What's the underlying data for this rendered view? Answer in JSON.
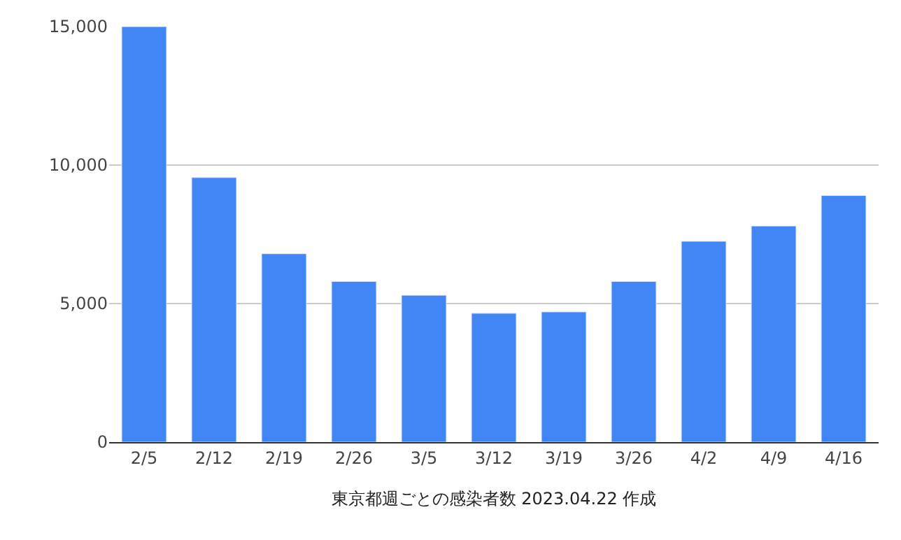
{
  "chart_data": {
    "type": "bar",
    "xlabel": "東京都週ごとの感染者数 2023.04.22 作成",
    "categories": [
      "2/5",
      "2/12",
      "2/19",
      "2/26",
      "3/5",
      "3/12",
      "3/19",
      "3/26",
      "4/2",
      "4/9",
      "4/16"
    ],
    "values": [
      15000,
      9550,
      6800,
      5800,
      5300,
      4650,
      4700,
      5800,
      7250,
      7800,
      8900
    ],
    "color": "#4285f4",
    "ylim": [
      0,
      15000
    ],
    "yticks": [
      0,
      {
        "value": 5000,
        "label": "5,000"
      },
      {
        "value": 10000,
        "label": "10,000"
      },
      {
        "value": 15000,
        "label": "15,000"
      }
    ],
    "grid": "y"
  }
}
